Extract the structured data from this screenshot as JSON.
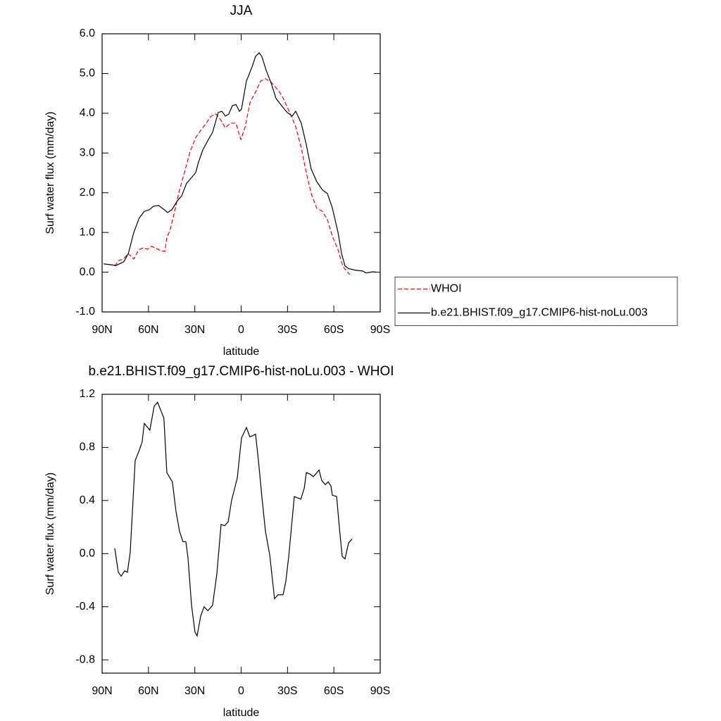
{
  "chart_data": [
    {
      "type": "line",
      "title": "JJA",
      "xlabel": "latitude",
      "ylabel": "Surf water flux (mm/day)",
      "xlim": [
        90,
        -90
      ],
      "ylim": [
        -1.0,
        6.0
      ],
      "xticks": [
        {
          "value": 90,
          "label": "90N"
        },
        {
          "value": 60,
          "label": "60N"
        },
        {
          "value": 30,
          "label": "30N"
        },
        0,
        {
          "value": -30,
          "label": "30S"
        },
        {
          "value": -60,
          "label": "60S"
        },
        {
          "value": -90,
          "label": "90S"
        }
      ],
      "yticks": [
        {
          "value": -1,
          "label": "-1.0"
        },
        {
          "value": 0,
          "label": "0.0"
        },
        {
          "value": 1,
          "label": "1.0"
        },
        {
          "value": 2,
          "label": "2.0"
        },
        {
          "value": 3,
          "label": "3.0"
        },
        {
          "value": 4,
          "label": "4.0"
        },
        {
          "value": 5,
          "label": "5.0"
        },
        {
          "value": 6,
          "label": "6.0"
        }
      ],
      "legend": "right",
      "series": [
        {
          "name": "WHOI",
          "color": "#ff0000",
          "dashed": true,
          "x": [
            81.8,
            79.5,
            76.3,
            73.1,
            69.5,
            66.3,
            63.6,
            60.4,
            58.1,
            54.9,
            52.2,
            49.4,
            48.1,
            45.8,
            43.1,
            39.9,
            36.7,
            33,
            29.4,
            26.2,
            22.6,
            19.4,
            16.2,
            13.4,
            10.2,
            7,
            3.4,
            0.2,
            -2.6,
            -5.8,
            -9.5,
            -12.6,
            -15.8,
            -19.4,
            -22.6,
            -26.2,
            -29.4,
            -32.1,
            -35.3,
            -38.9,
            -42.1,
            -45.3,
            -48.9,
            -52.6,
            -55.8,
            -59,
            -62.7,
            -65.8,
            -68.1,
            -70.4
          ],
          "values": [
            0.15,
            0.29,
            0.33,
            0.47,
            0.33,
            0.56,
            0.61,
            0.58,
            0.65,
            0.6,
            0.54,
            0.52,
            0.86,
            1.09,
            1.53,
            2.07,
            2.51,
            3.04,
            3.39,
            3.57,
            3.75,
            3.93,
            3.98,
            3.84,
            3.63,
            3.75,
            3.75,
            3.34,
            3.66,
            4.28,
            4.55,
            4.81,
            4.87,
            4.78,
            4.64,
            4.46,
            4.19,
            3.96,
            3.66,
            3.13,
            2.51,
            1.98,
            1.61,
            1.53,
            1.32,
            0.91,
            0.56,
            0.15,
            0.03,
            -0.06
          ]
        },
        {
          "name": "b.e21.BHIST.f09_g17.CMIP6-hist-noLu.003",
          "color": "#000000",
          "dashed": false,
          "x": [
            89,
            81,
            76,
            73,
            69.5,
            66,
            62.7,
            59.5,
            56.7,
            53.5,
            50.3,
            47.6,
            44.9,
            41.2,
            38.5,
            35.3,
            32.1,
            29.4,
            27.6,
            24.8,
            21.6,
            18.5,
            14.8,
            12.5,
            10.2,
            8,
            5.7,
            3.4,
            1.1,
            -0.2,
            -3.4,
            -7.1,
            -9.3,
            -11.6,
            -13.4,
            -16.2,
            -19.4,
            -22.6,
            -26.2,
            -29.8,
            -33,
            -35.3,
            -38.9,
            -42.1,
            -45.3,
            -48.9,
            -52.6,
            -55.8,
            -59,
            -62.7,
            -65,
            -67.2,
            -69.5,
            -74,
            -78.6,
            -80.8,
            -85.4,
            -87.6
          ],
          "values": [
            0.21,
            0.17,
            0.26,
            0.47,
            1.0,
            1.36,
            1.53,
            1.57,
            1.66,
            1.68,
            1.59,
            1.5,
            1.57,
            1.8,
            1.92,
            2.24,
            2.38,
            2.51,
            2.77,
            3.08,
            3.31,
            3.52,
            4.02,
            4.05,
            3.93,
            3.98,
            4.19,
            4.22,
            4.05,
            4.1,
            4.81,
            5.17,
            5.43,
            5.52,
            5.43,
            5.08,
            4.76,
            4.37,
            4.19,
            4.02,
            3.93,
            4.05,
            3.75,
            3.22,
            2.6,
            2.28,
            2.07,
            1.98,
            1.62,
            1.0,
            0.47,
            0.16,
            0.09,
            0.05,
            0.03,
            -0.02,
            0.01,
            0.0
          ]
        }
      ]
    },
    {
      "type": "line",
      "title": "b.e21.BHIST.f09_g17.CMIP6-hist-noLu.003 - WHOI",
      "xlabel": "latitude",
      "ylabel": "Surf water flux (mm/day)",
      "xlim": [
        90,
        -90
      ],
      "ylim": [
        -0.9,
        1.2
      ],
      "xticks": [
        {
          "value": 90,
          "label": "90N"
        },
        {
          "value": 60,
          "label": "60N"
        },
        {
          "value": 30,
          "label": "30N"
        },
        0,
        {
          "value": -30,
          "label": "30S"
        },
        {
          "value": -60,
          "label": "60S"
        },
        {
          "value": -90,
          "label": "90S"
        }
      ],
      "yticks": [
        -0.8,
        -0.4,
        {
          "value": 0,
          "label": "0.0"
        },
        0.4,
        0.8,
        1.2
      ],
      "series": [
        {
          "color": "#000000",
          "dashed": false,
          "x": [
            81.8,
            79.5,
            77.7,
            75.4,
            73.6,
            71.8,
            68.6,
            65.9,
            64.1,
            62.7,
            59.1,
            56.3,
            54.1,
            50,
            48.1,
            44.5,
            42.2,
            39.9,
            37.7,
            35.8,
            34.5,
            32.1,
            29.9,
            28.5,
            26.2,
            24,
            21.6,
            18.5,
            15.7,
            13,
            10.7,
            8.4,
            6.2,
            2.5,
            -0.2,
            -3.4,
            -5.6,
            -7.9,
            -9.3,
            -11.2,
            -13.4,
            -15.7,
            -18.5,
            -21.6,
            -23.9,
            -27.1,
            -28.9,
            -30.8,
            -34.4,
            -38.6,
            -40.8,
            -42.2,
            -44.5,
            -46.7,
            -49,
            -50.4,
            -52.2,
            -54.5,
            -56.3,
            -58.1,
            -59,
            -61.8,
            -63.6,
            -65.4,
            -67.2,
            -69.5,
            -71.8
          ],
          "values": [
            0.04,
            -0.14,
            -0.17,
            -0.13,
            -0.14,
            0.01,
            0.7,
            0.78,
            0.84,
            0.98,
            0.93,
            1.11,
            1.14,
            1.02,
            0.61,
            0.54,
            0.32,
            0.17,
            0.09,
            0.09,
            -0.02,
            -0.39,
            -0.59,
            -0.62,
            -0.47,
            -0.4,
            -0.43,
            -0.39,
            -0.15,
            0.22,
            0.21,
            0.24,
            0.4,
            0.57,
            0.87,
            0.95,
            0.88,
            0.89,
            0.9,
            0.7,
            0.43,
            0.17,
            -0.01,
            -0.34,
            -0.31,
            -0.31,
            -0.21,
            -0.02,
            0.43,
            0.41,
            0.49,
            0.61,
            0.6,
            0.58,
            0.61,
            0.63,
            0.55,
            0.52,
            0.54,
            0.51,
            0.44,
            0.43,
            0.19,
            -0.02,
            -0.04,
            0.08,
            0.11
          ]
        }
      ]
    }
  ]
}
